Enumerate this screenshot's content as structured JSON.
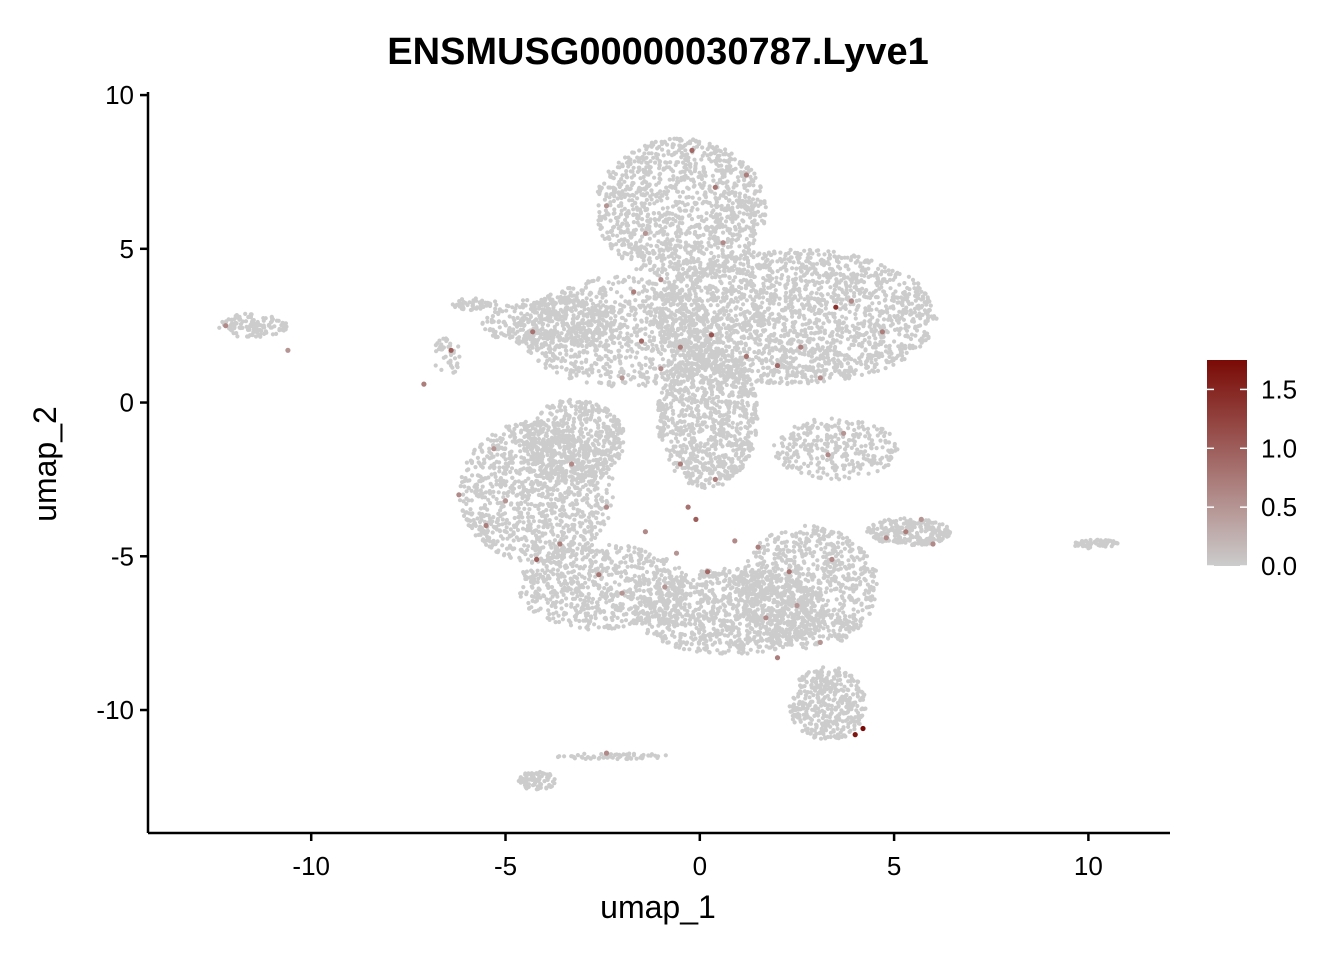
{
  "chart_data": {
    "type": "scatter",
    "title": "ENSMUSG00000030787.Lyve1",
    "xlabel": "umap_1",
    "ylabel": "umap_2",
    "xlim": [
      -14.2,
      12.1
    ],
    "ylim": [
      -14.0,
      10.1
    ],
    "x_ticks": [
      -10,
      -5,
      0,
      5,
      10
    ],
    "x_tick_labels": [
      "-10",
      "-5",
      "0",
      "5",
      "10"
    ],
    "y_ticks": [
      -10,
      -5,
      0,
      5,
      10
    ],
    "y_tick_labels": [
      "-10",
      "-5",
      "0",
      "5",
      "10"
    ],
    "grid": false,
    "legend": {
      "position": "right",
      "type": "colorbar",
      "min": 0.0,
      "max": 1.75,
      "ticks": [
        0.0,
        0.5,
        1.0,
        1.5
      ],
      "tick_labels": [
        "0.0",
        "0.5",
        "1.0",
        "1.5"
      ],
      "low_color": "#cccccc",
      "high_color": "#7a0a05"
    },
    "background_color": "#cccccc",
    "clusters": [
      {
        "region": "top-lobe",
        "cx": -0.5,
        "cy": 6.3,
        "rx": 2.2,
        "ry": 2.3,
        "n": 1200
      },
      {
        "region": "upper-right-lobe",
        "cx": 2.4,
        "cy": 2.8,
        "rx": 3.7,
        "ry": 2.2,
        "n": 2000
      },
      {
        "region": "center-left-lobe",
        "cx": -2.0,
        "cy": 2.3,
        "rx": 2.6,
        "ry": 1.8,
        "n": 900
      },
      {
        "region": "upper-left-lobe",
        "cx": -3.8,
        "cy": 2.6,
        "rx": 1.8,
        "ry": 0.8,
        "n": 350
      },
      {
        "region": "central-column",
        "cx": 0.2,
        "cy": -0.5,
        "rx": 1.3,
        "ry": 2.3,
        "n": 900
      },
      {
        "region": "left-ring",
        "cx": -4.2,
        "cy": -2.9,
        "rx": 2.0,
        "ry": 2.3,
        "n": 1100
      },
      {
        "region": "left-inner",
        "cx": -3.2,
        "cy": -1.2,
        "rx": 1.3,
        "ry": 1.3,
        "n": 500
      },
      {
        "region": "bottom-left-lobe",
        "cx": -2.5,
        "cy": -6.0,
        "rx": 2.2,
        "ry": 1.4,
        "n": 700
      },
      {
        "region": "bottom-center",
        "cx": 0.8,
        "cy": -6.8,
        "rx": 2.5,
        "ry": 1.4,
        "n": 1000
      },
      {
        "region": "bottom-right",
        "cx": 2.8,
        "cy": -6.0,
        "rx": 1.8,
        "ry": 2.0,
        "n": 800
      },
      {
        "region": "lower-tail",
        "cx": 3.3,
        "cy": -9.8,
        "rx": 1.0,
        "ry": 1.2,
        "n": 400
      },
      {
        "region": "right-arm",
        "cx": 5.4,
        "cy": -4.2,
        "rx": 1.1,
        "ry": 0.45,
        "n": 250
      },
      {
        "region": "mid-right",
        "cx": 3.5,
        "cy": -1.5,
        "rx": 1.6,
        "ry": 1.0,
        "n": 300
      },
      {
        "region": "far-left-island",
        "cx": -11.5,
        "cy": 2.5,
        "rx": 0.9,
        "ry": 0.4,
        "n": 120
      },
      {
        "region": "far-right-island",
        "cx": 10.2,
        "cy": -4.6,
        "rx": 0.6,
        "ry": 0.15,
        "n": 60
      },
      {
        "region": "bottom-island",
        "cx": -4.2,
        "cy": -12.3,
        "rx": 0.5,
        "ry": 0.3,
        "n": 80
      },
      {
        "region": "bottom-streak",
        "cx": -2.3,
        "cy": -11.5,
        "rx": 1.5,
        "ry": 0.1,
        "n": 60
      },
      {
        "region": "left-islet",
        "cx": -6.5,
        "cy": 1.5,
        "rx": 0.4,
        "ry": 0.6,
        "n": 40
      },
      {
        "region": "left-top-islet",
        "cx": -5.8,
        "cy": 3.2,
        "rx": 0.6,
        "ry": 0.2,
        "n": 50
      }
    ],
    "expressing_cells": [
      {
        "x": 4.2,
        "y": -10.6,
        "value": 1.75
      },
      {
        "x": 4.0,
        "y": -10.8,
        "value": 1.65
      },
      {
        "x": 3.5,
        "y": 3.1,
        "value": 1.4
      },
      {
        "x": 0.3,
        "y": 2.2,
        "value": 1.1
      },
      {
        "x": -1.5,
        "y": 2.0,
        "value": 0.9
      },
      {
        "x": 1.2,
        "y": 1.5,
        "value": 0.8
      },
      {
        "x": 2.0,
        "y": 1.2,
        "value": 0.9
      },
      {
        "x": 2.6,
        "y": 1.8,
        "value": 0.7
      },
      {
        "x": 3.1,
        "y": 0.8,
        "value": 0.6
      },
      {
        "x": 4.7,
        "y": 2.3,
        "value": 0.7
      },
      {
        "x": 3.9,
        "y": 3.3,
        "value": 0.6
      },
      {
        "x": -0.2,
        "y": 8.2,
        "value": 0.9
      },
      {
        "x": 0.4,
        "y": 7.0,
        "value": 0.8
      },
      {
        "x": 0.6,
        "y": 5.2,
        "value": 0.6
      },
      {
        "x": -2.4,
        "y": 6.4,
        "value": 0.5
      },
      {
        "x": -1.0,
        "y": 4.0,
        "value": 0.6
      },
      {
        "x": -1.7,
        "y": 3.6,
        "value": 0.7
      },
      {
        "x": -4.3,
        "y": 2.3,
        "value": 0.8
      },
      {
        "x": -6.4,
        "y": 1.7,
        "value": 1.0
      },
      {
        "x": -7.1,
        "y": 0.6,
        "value": 0.7
      },
      {
        "x": -12.2,
        "y": 2.5,
        "value": 0.6
      },
      {
        "x": -10.6,
        "y": 1.7,
        "value": 0.5
      },
      {
        "x": -0.5,
        "y": 1.8,
        "value": 0.7
      },
      {
        "x": -2.0,
        "y": 0.8,
        "value": 0.5
      },
      {
        "x": -1.0,
        "y": 1.1,
        "value": 0.6
      },
      {
        "x": -5.3,
        "y": -1.5,
        "value": 0.5
      },
      {
        "x": -5.5,
        "y": -4.0,
        "value": 0.7
      },
      {
        "x": -6.2,
        "y": -3.0,
        "value": 0.6
      },
      {
        "x": -5.0,
        "y": -3.2,
        "value": 0.5
      },
      {
        "x": -4.2,
        "y": -5.1,
        "value": 1.0
      },
      {
        "x": -3.6,
        "y": -4.6,
        "value": 0.7
      },
      {
        "x": -3.3,
        "y": -2.0,
        "value": 0.6
      },
      {
        "x": -2.4,
        "y": -3.4,
        "value": 0.6
      },
      {
        "x": -2.6,
        "y": -5.6,
        "value": 0.8
      },
      {
        "x": -2.0,
        "y": -6.2,
        "value": 0.5
      },
      {
        "x": -1.4,
        "y": -4.2,
        "value": 0.6
      },
      {
        "x": -0.5,
        "y": -2.0,
        "value": 0.7
      },
      {
        "x": -0.1,
        "y": -3.8,
        "value": 1.0
      },
      {
        "x": -0.3,
        "y": -3.4,
        "value": 0.8
      },
      {
        "x": 0.4,
        "y": -2.5,
        "value": 0.7
      },
      {
        "x": 0.9,
        "y": -4.5,
        "value": 0.6
      },
      {
        "x": 0.2,
        "y": -5.5,
        "value": 0.9
      },
      {
        "x": -0.6,
        "y": -4.9,
        "value": 0.5
      },
      {
        "x": 1.5,
        "y": -4.7,
        "value": 0.7
      },
      {
        "x": 1.7,
        "y": -7.0,
        "value": 0.6
      },
      {
        "x": 2.3,
        "y": -5.5,
        "value": 0.8
      },
      {
        "x": 2.0,
        "y": -8.3,
        "value": 0.7
      },
      {
        "x": 2.5,
        "y": -6.6,
        "value": 0.5
      },
      {
        "x": 3.4,
        "y": -5.1,
        "value": 0.6
      },
      {
        "x": 3.1,
        "y": -7.8,
        "value": 0.5
      },
      {
        "x": 4.8,
        "y": -4.4,
        "value": 0.6
      },
      {
        "x": 5.3,
        "y": -4.2,
        "value": 0.7
      },
      {
        "x": 6.0,
        "y": -4.6,
        "value": 0.6
      },
      {
        "x": 5.7,
        "y": -3.8,
        "value": 0.5
      },
      {
        "x": -2.4,
        "y": -11.4,
        "value": 0.6
      },
      {
        "x": 3.7,
        "y": -1.0,
        "value": 0.5
      },
      {
        "x": 3.3,
        "y": -1.7,
        "value": 0.6
      },
      {
        "x": -0.9,
        "y": -6.0,
        "value": 0.5
      },
      {
        "x": 1.2,
        "y": 7.4,
        "value": 0.7
      },
      {
        "x": -1.4,
        "y": 5.5,
        "value": 0.5
      }
    ]
  }
}
